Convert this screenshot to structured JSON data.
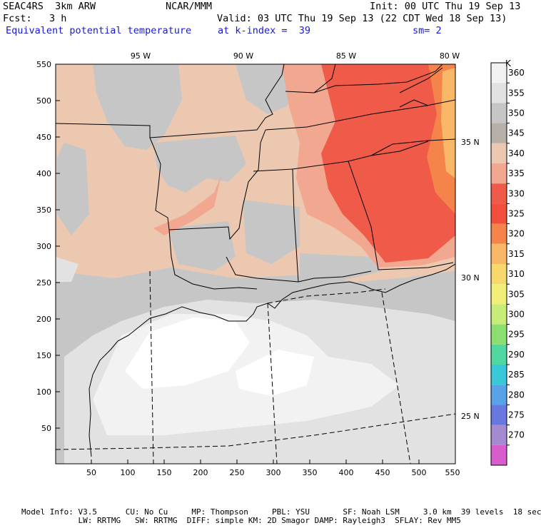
{
  "header": {
    "model": "SEAC4RS  3km ARW",
    "center": "NCAR/MMM",
    "init": "Init: 00 UTC Thu 19 Sep 13",
    "fcst": "Fcst:   3 h",
    "valid": "Valid: 03 UTC Thu 19 Sep 13 (22 CDT Wed 18 Sep 13)",
    "field": "Equivalent potential temperature",
    "level": "at k-index =  39",
    "smoothing": "sm= 2"
  },
  "map": {
    "lon_labels": [
      "95 W",
      "90 W",
      "85 W",
      "80 W"
    ],
    "lat_labels": [
      "35 N",
      "30 N",
      "25 N"
    ],
    "x_ticks": [
      "50",
      "100",
      "150",
      "200",
      "250",
      "300",
      "350",
      "400",
      "450",
      "500",
      "550"
    ],
    "y_ticks": [
      "550",
      "500",
      "450",
      "400",
      "350",
      "300",
      "250",
      "200",
      "150",
      "100",
      "50"
    ]
  },
  "colorbar": {
    "unit": "K",
    "levels": [
      "360",
      "355",
      "350",
      "345",
      "340",
      "335",
      "330",
      "325",
      "320",
      "315",
      "310",
      "305",
      "300",
      "295",
      "290",
      "285",
      "280",
      "275",
      "270"
    ],
    "colors": [
      "#f2f2f2",
      "#e2e2e2",
      "#c6c6c6",
      "#b8b0a8",
      "#ecc8b0",
      "#f2a890",
      "#f05a48",
      "#f24e3e",
      "#f4844a",
      "#f8b868",
      "#f8d86c",
      "#f2ee78",
      "#c8ec78",
      "#8cde70",
      "#50d8a0",
      "#38c8d8",
      "#5aa2e8",
      "#6878e0",
      "#a48ad0",
      "#d85ccc"
    ]
  },
  "footer": {
    "line1": "Model Info: V3.5      CU: No Cu     MP: Thompson     PBL: YSU       SF: Noah LSM     3.0 km  39 levels  18 sec",
    "line2": "            LW: RRTMG   SW: RRTMG  DIFF: simple KM: 2D Smagor DAMP: Rayleigh3  SFLAY: Rev MM5"
  }
}
